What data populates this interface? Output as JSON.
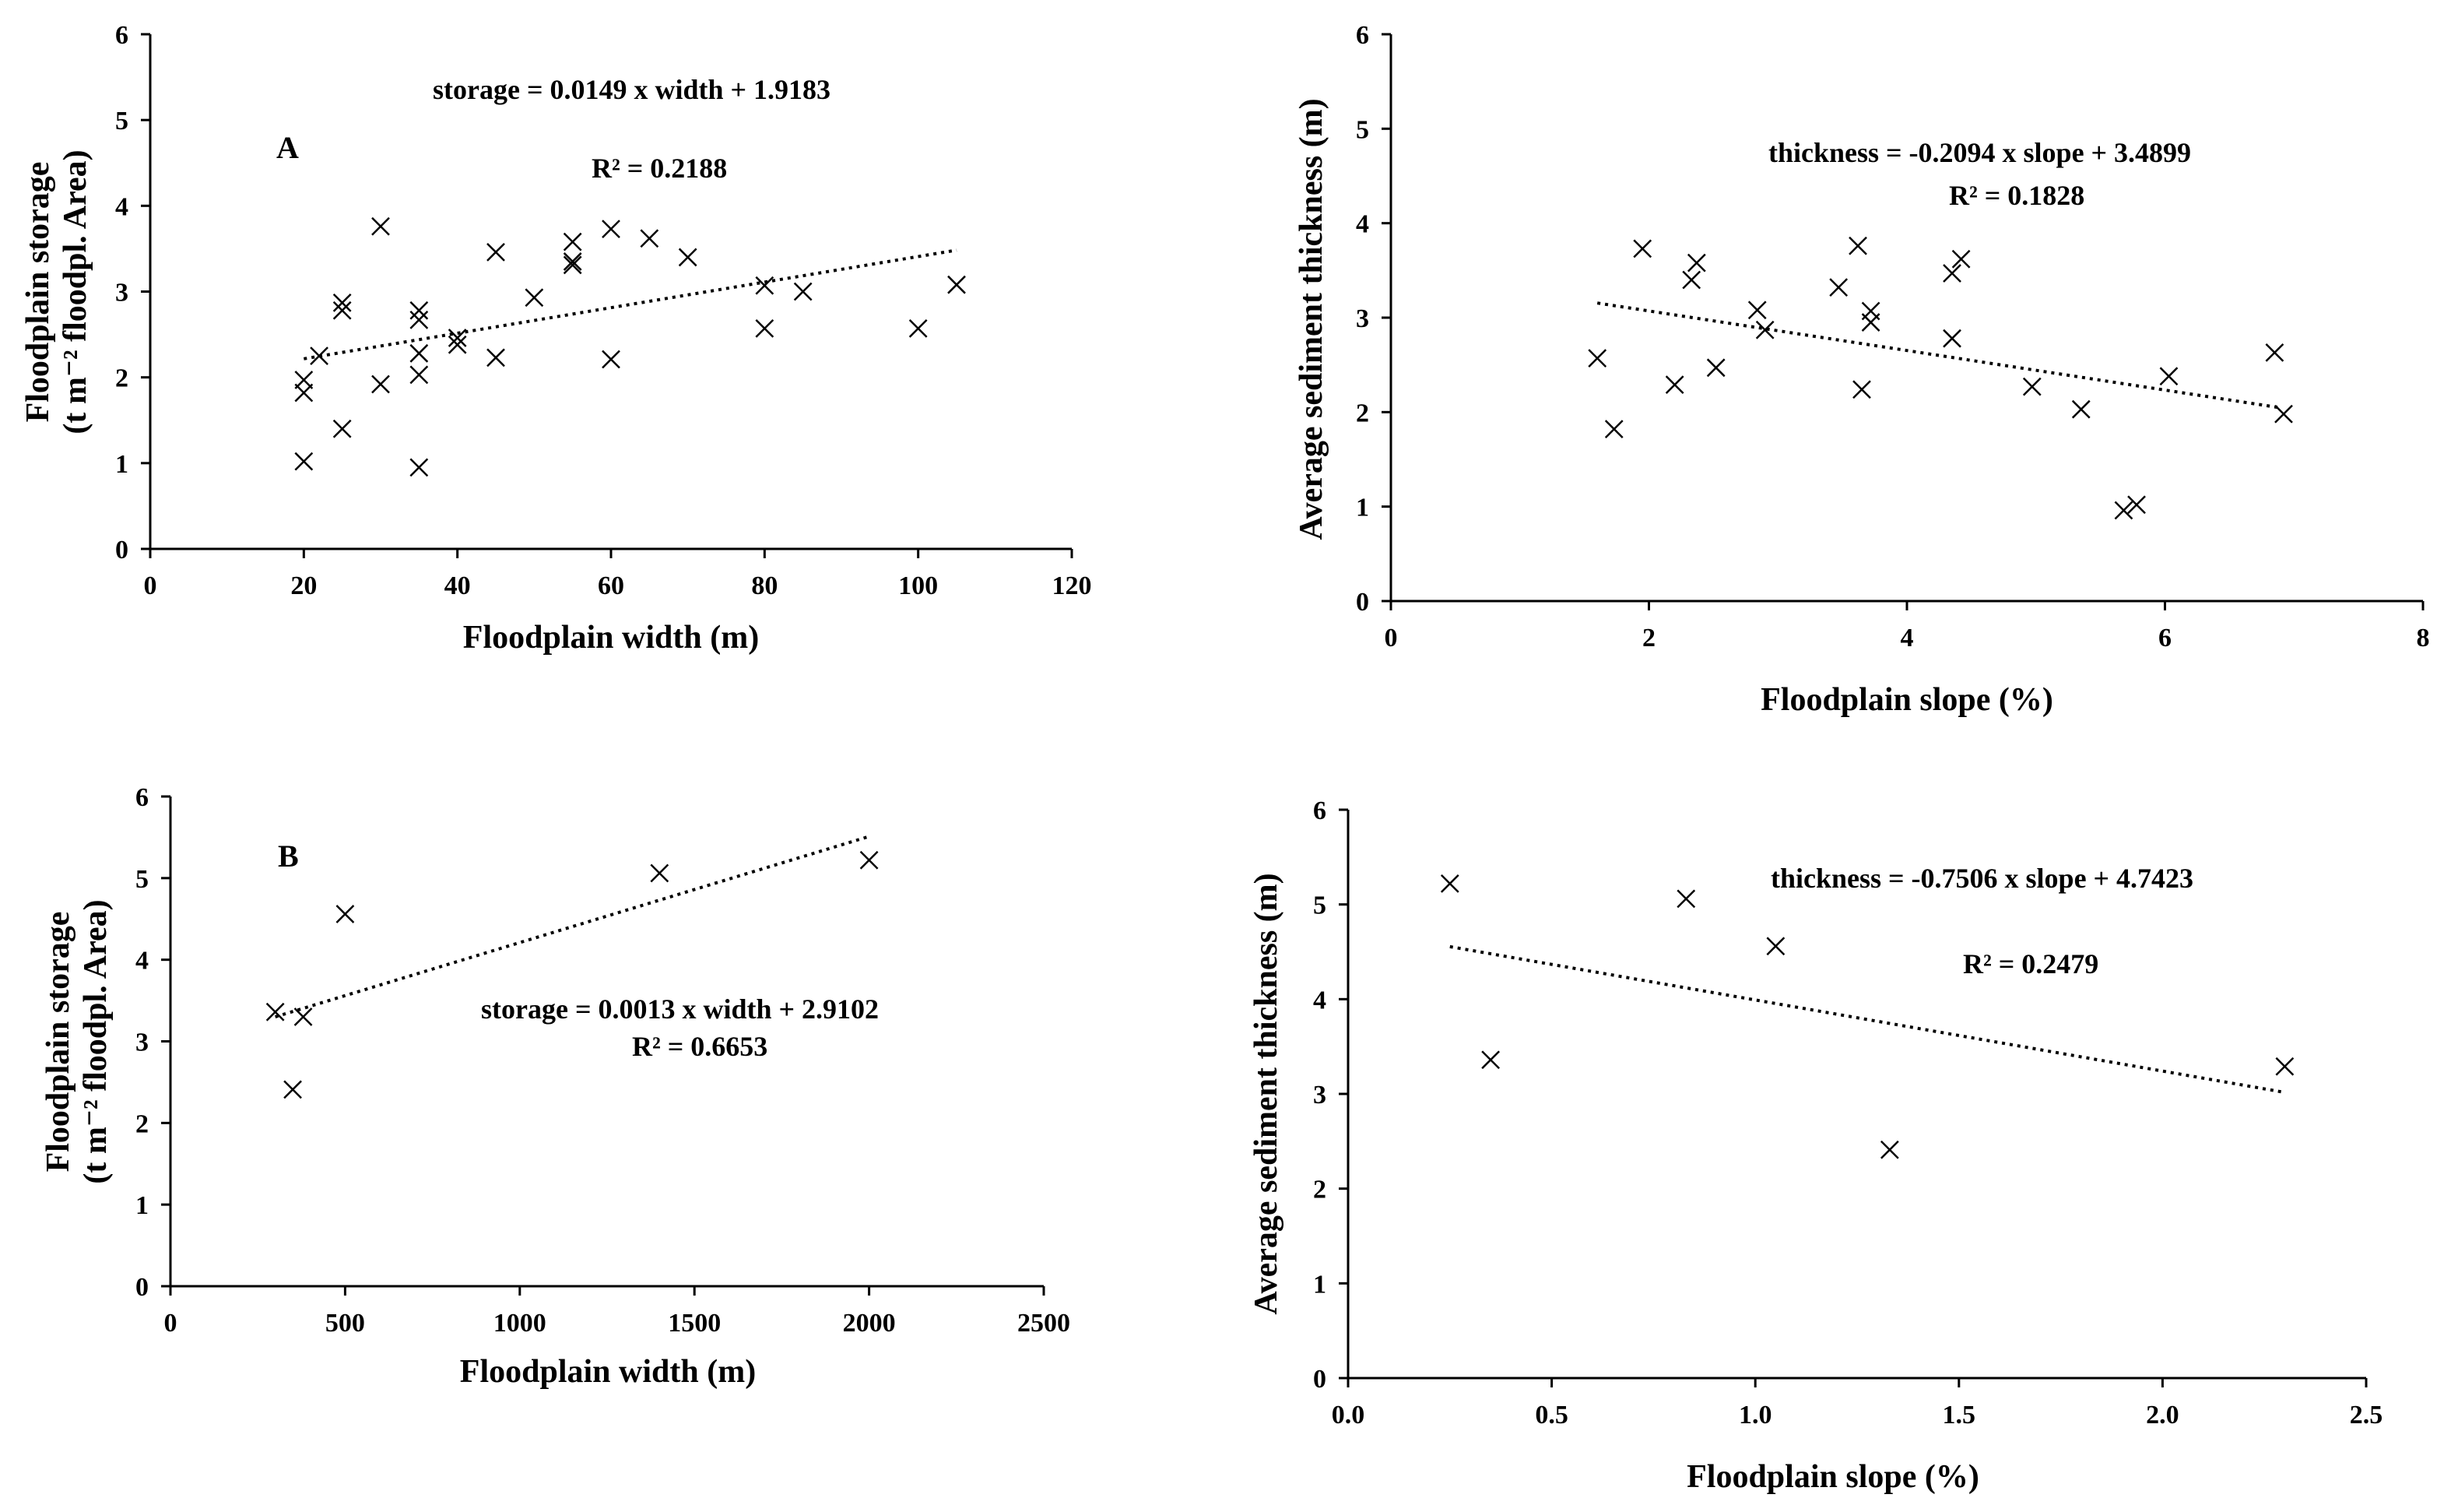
{
  "chart_data": [
    {
      "type": "scatter",
      "panel_label": "A",
      "xlabel": "Floodplain width (m)",
      "ylabel_line1": "Floodplain storage",
      "ylabel_line2": "(t m⁻² floodpl. Area)",
      "xlim": [
        0,
        120
      ],
      "ylim": [
        0,
        6
      ],
      "xticks": [
        0,
        20,
        40,
        60,
        80,
        100,
        120
      ],
      "yticks": [
        0,
        1,
        2,
        3,
        4,
        5,
        6
      ],
      "xtick_labels": [
        "0",
        "20",
        "40",
        "60",
        "80",
        "100",
        "120"
      ],
      "ytick_labels": [
        "0",
        "1",
        "2",
        "3",
        "4",
        "5",
        "6"
      ],
      "marker": "x",
      "equation": "storage = 0.0149 x width + 1.9183",
      "r_squared": "R² = 0.2188",
      "trendline": {
        "slope": 0.0149,
        "intercept": 1.9183,
        "x_range": [
          20,
          105
        ]
      },
      "points": [
        {
          "x": 20,
          "y": 1.97
        },
        {
          "x": 20,
          "y": 1.82
        },
        {
          "x": 20,
          "y": 1.02
        },
        {
          "x": 22,
          "y": 2.25
        },
        {
          "x": 25,
          "y": 2.87
        },
        {
          "x": 25,
          "y": 2.78
        },
        {
          "x": 25,
          "y": 1.4
        },
        {
          "x": 30,
          "y": 3.76
        },
        {
          "x": 30,
          "y": 1.92
        },
        {
          "x": 35,
          "y": 2.78
        },
        {
          "x": 35,
          "y": 2.67
        },
        {
          "x": 35,
          "y": 2.28
        },
        {
          "x": 35,
          "y": 2.03
        },
        {
          "x": 35,
          "y": 0.95
        },
        {
          "x": 40,
          "y": 2.46
        },
        {
          "x": 40,
          "y": 2.38
        },
        {
          "x": 45,
          "y": 3.46
        },
        {
          "x": 45,
          "y": 2.23
        },
        {
          "x": 50,
          "y": 2.93
        },
        {
          "x": 55,
          "y": 3.58
        },
        {
          "x": 55,
          "y": 3.35
        },
        {
          "x": 55,
          "y": 3.31
        },
        {
          "x": 60,
          "y": 3.73
        },
        {
          "x": 60,
          "y": 2.21
        },
        {
          "x": 65,
          "y": 3.62
        },
        {
          "x": 70,
          "y": 3.4
        },
        {
          "x": 80,
          "y": 3.07
        },
        {
          "x": 80,
          "y": 2.57
        },
        {
          "x": 85,
          "y": 3.0
        },
        {
          "x": 100,
          "y": 2.57
        },
        {
          "x": 105,
          "y": 3.08
        }
      ]
    },
    {
      "type": "scatter",
      "panel_label": "",
      "xlabel": "Floodplain slope  (%)",
      "ylabel_line1": "Average sediment thickness (m)",
      "ylabel_line2": "",
      "xlim": [
        0,
        8
      ],
      "ylim": [
        0,
        6
      ],
      "xticks": [
        0,
        2,
        4,
        6,
        8
      ],
      "yticks": [
        0,
        1,
        2,
        3,
        4,
        5,
        6
      ],
      "xtick_labels": [
        "0",
        "2",
        "4",
        "6",
        "8"
      ],
      "ytick_labels": [
        "0",
        "1",
        "2",
        "3",
        "4",
        "5",
        "6"
      ],
      "marker": "x",
      "equation": "thickness = -0.2094 x slope + 3.4899",
      "r_squared": "R² = 0.1828",
      "trendline": {
        "slope": -0.2094,
        "intercept": 3.4899,
        "x_range": [
          1.6,
          6.9
        ]
      },
      "points": [
        {
          "x": 1.6,
          "y": 2.57
        },
        {
          "x": 1.73,
          "y": 1.82
        },
        {
          "x": 1.95,
          "y": 3.73
        },
        {
          "x": 2.2,
          "y": 2.29
        },
        {
          "x": 2.33,
          "y": 3.4
        },
        {
          "x": 2.37,
          "y": 3.58
        },
        {
          "x": 2.52,
          "y": 2.47
        },
        {
          "x": 2.84,
          "y": 3.08
        },
        {
          "x": 2.9,
          "y": 2.87
        },
        {
          "x": 3.47,
          "y": 3.32
        },
        {
          "x": 3.62,
          "y": 3.76
        },
        {
          "x": 3.65,
          "y": 2.24
        },
        {
          "x": 3.72,
          "y": 3.07
        },
        {
          "x": 3.72,
          "y": 2.95
        },
        {
          "x": 4.35,
          "y": 3.47
        },
        {
          "x": 4.35,
          "y": 2.78
        },
        {
          "x": 4.42,
          "y": 3.62
        },
        {
          "x": 4.97,
          "y": 2.27
        },
        {
          "x": 5.35,
          "y": 2.03
        },
        {
          "x": 5.68,
          "y": 0.96
        },
        {
          "x": 5.78,
          "y": 1.02
        },
        {
          "x": 6.03,
          "y": 2.38
        },
        {
          "x": 6.85,
          "y": 2.63
        },
        {
          "x": 6.92,
          "y": 1.98
        }
      ]
    },
    {
      "type": "scatter",
      "panel_label": "B",
      "xlabel": "Floodplain width (m)",
      "ylabel_line1": "Floodplain storage",
      "ylabel_line2": "(t m⁻² floodpl. Area)",
      "xlim": [
        0,
        2500
      ],
      "ylim": [
        0,
        6
      ],
      "xticks": [
        0,
        500,
        1000,
        1500,
        2000,
        2500
      ],
      "yticks": [
        0,
        1,
        2,
        3,
        4,
        5,
        6
      ],
      "xtick_labels": [
        "0",
        "500",
        "1000",
        "1500",
        "2000",
        "2500"
      ],
      "ytick_labels": [
        "0",
        "1",
        "2",
        "3",
        "4",
        "5",
        "6"
      ],
      "marker": "x",
      "equation": "storage = 0.0013 x width + 2.9102",
      "r_squared": "R² = 0.6653",
      "trendline": {
        "slope": 0.0013,
        "intercept": 2.9102,
        "x_range": [
          300,
          2000
        ]
      },
      "points": [
        {
          "x": 300,
          "y": 3.36
        },
        {
          "x": 350,
          "y": 2.41
        },
        {
          "x": 380,
          "y": 3.3
        },
        {
          "x": 500,
          "y": 4.56
        },
        {
          "x": 1400,
          "y": 5.06
        },
        {
          "x": 2000,
          "y": 5.22
        }
      ]
    },
    {
      "type": "scatter",
      "panel_label": "",
      "xlabel": "Floodplain slope (%)",
      "ylabel_line1": "Average sediment thickness (m)",
      "ylabel_line2": "",
      "xlim": [
        0,
        2.5
      ],
      "ylim": [
        0,
        6
      ],
      "xticks": [
        0,
        0.5,
        1,
        1.5,
        2,
        2.5
      ],
      "yticks": [
        0,
        1,
        2,
        3,
        4,
        5,
        6
      ],
      "xtick_labels": [
        "0.0",
        "0.5",
        "1.0",
        "1.5",
        "2.0",
        "2.5"
      ],
      "ytick_labels": [
        "0",
        "1",
        "2",
        "3",
        "4",
        "5",
        "6"
      ],
      "marker": "x",
      "equation": "thickness = -0.7506 x slope + 4.7423",
      "r_squared": "R² = 0.2479",
      "trendline": {
        "slope": -0.7506,
        "intercept": 4.7423,
        "x_range": [
          0.25,
          2.3
        ]
      },
      "points": [
        {
          "x": 0.25,
          "y": 5.22
        },
        {
          "x": 0.35,
          "y": 3.36
        },
        {
          "x": 0.83,
          "y": 5.06
        },
        {
          "x": 1.05,
          "y": 4.56
        },
        {
          "x": 1.33,
          "y": 2.41
        },
        {
          "x": 2.3,
          "y": 3.29
        }
      ]
    }
  ]
}
